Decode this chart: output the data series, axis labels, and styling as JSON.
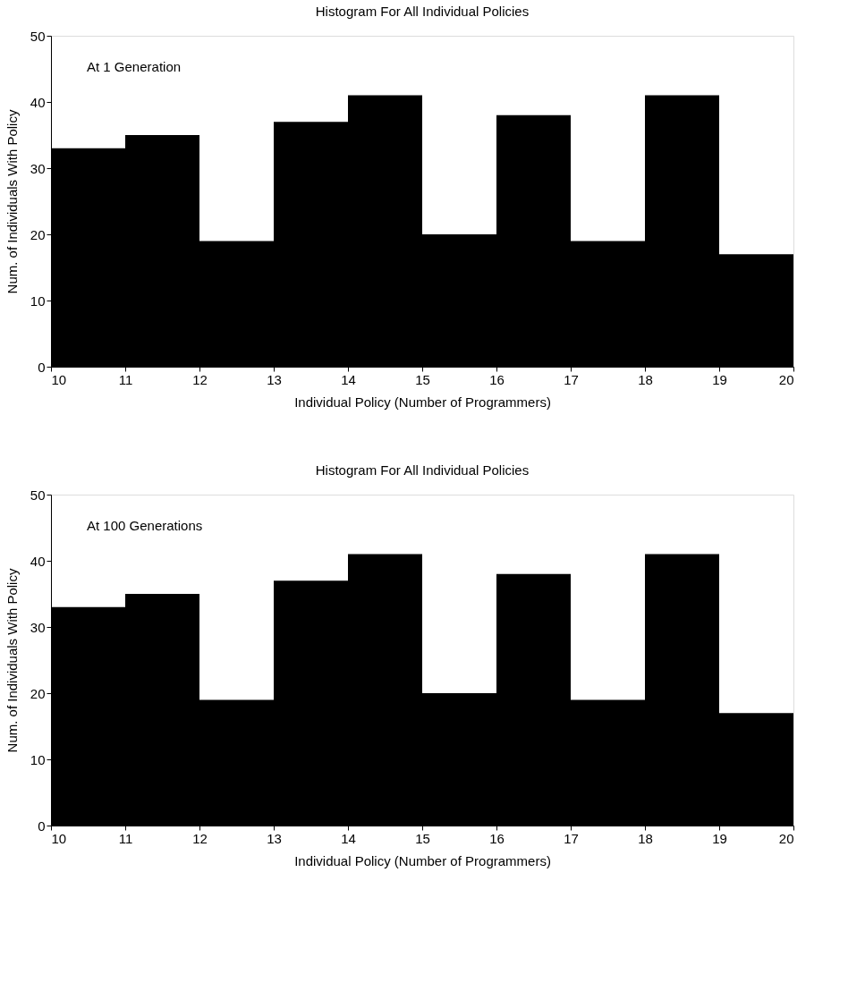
{
  "chart_data": [
    {
      "type": "histogram",
      "title": "Histogram For All Individual Policies",
      "xlabel": "Individual Policy (Number of Programmers)",
      "ylabel": "Num. of Individuals With Policy",
      "annotations": [
        "At 1 Generation"
      ],
      "bins": [
        10,
        11,
        12,
        13,
        14,
        15,
        16,
        17,
        18,
        19,
        20
      ],
      "values": [
        33,
        35,
        19,
        37,
        41,
        20,
        38,
        19,
        41,
        17
      ],
      "color": "#000000",
      "xlim": [
        10,
        20
      ],
      "xticks": [
        10,
        11,
        12,
        13,
        14,
        15,
        16,
        17,
        18,
        19,
        20
      ],
      "ylim": [
        0,
        50
      ],
      "yticks": [
        0,
        10,
        20,
        30,
        40,
        50
      ],
      "grid": false
    },
    {
      "type": "histogram",
      "title": "Histogram For All Individual Policies",
      "xlabel": "Individual Policy (Number of Programmers)",
      "ylabel": "Num. of Individuals With Policy",
      "annotations": [
        "At 100 Generations"
      ],
      "bins": [
        10,
        11,
        12,
        13,
        14,
        15,
        16,
        17,
        18,
        19,
        20
      ],
      "values": [
        33,
        35,
        19,
        37,
        41,
        20,
        38,
        19,
        41,
        17
      ],
      "color": "#000000",
      "xlim": [
        10,
        20
      ],
      "xticks": [
        10,
        11,
        12,
        13,
        14,
        15,
        16,
        17,
        18,
        19,
        20
      ],
      "ylim": [
        0,
        50
      ],
      "yticks": [
        0,
        10,
        20,
        30,
        40,
        50
      ],
      "grid": false
    }
  ]
}
